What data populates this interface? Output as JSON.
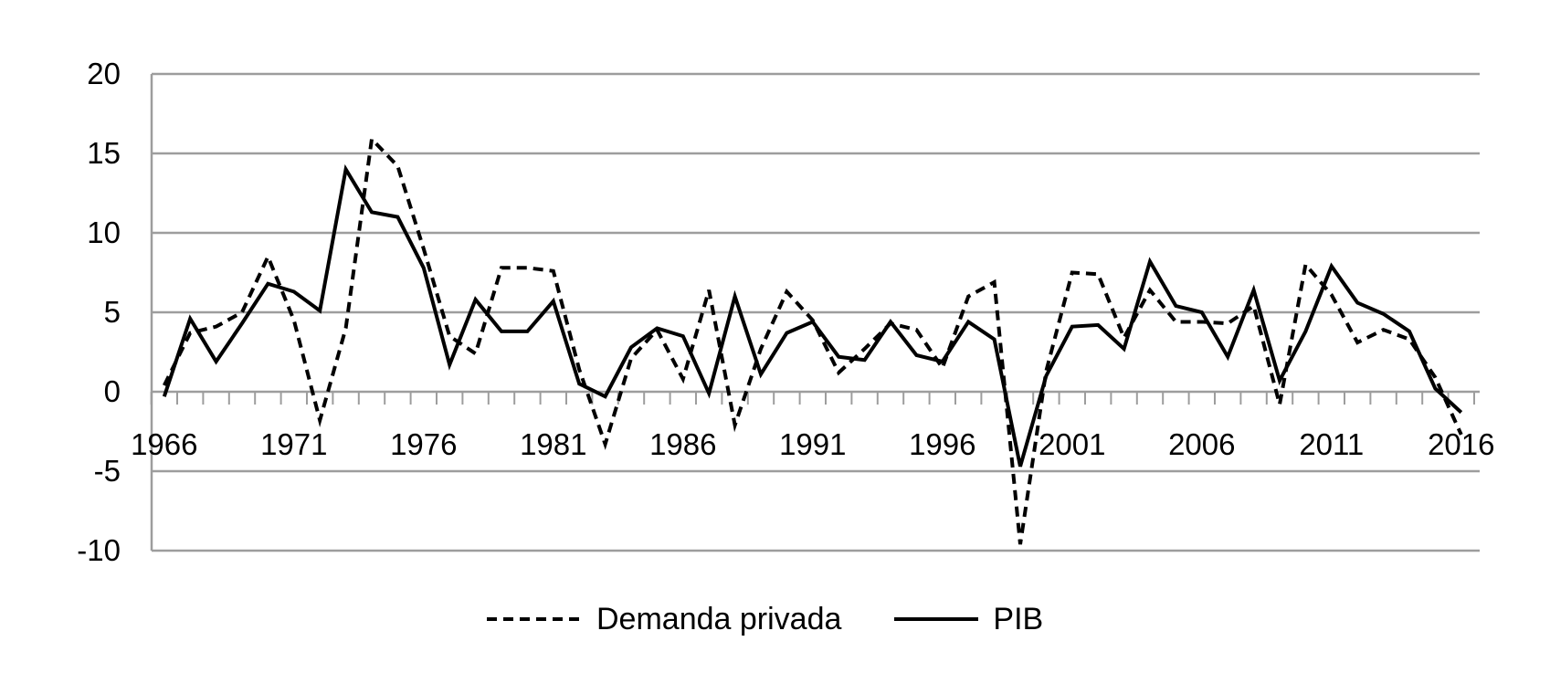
{
  "chart_data": {
    "type": "line",
    "title": "",
    "xlabel": "",
    "ylabel": "",
    "ylim": [
      -10,
      20
    ],
    "ytick_interval": 5,
    "grid": "horizontal",
    "gridline_color": "#9d9d9d",
    "axis_tick_color": "#9d9d9d",
    "line_color": "#000000",
    "legend_position": "bottom",
    "ytick_labels": [
      "20",
      "15",
      "10",
      "5",
      "0",
      "-5",
      "-10"
    ],
    "ytick_values": [
      20,
      15,
      10,
      5,
      0,
      -5,
      -10
    ],
    "xtick_labels": [
      "1966",
      "1971",
      "1976",
      "1981",
      "1986",
      "1991",
      "1996",
      "2001",
      "2006",
      "2011",
      "2016"
    ],
    "x": [
      1966,
      1967,
      1968,
      1969,
      1970,
      1971,
      1972,
      1973,
      1974,
      1975,
      1976,
      1977,
      1978,
      1979,
      1980,
      1981,
      1982,
      1983,
      1984,
      1985,
      1986,
      1987,
      1988,
      1989,
      1990,
      1991,
      1992,
      1993,
      1994,
      1995,
      1996,
      1997,
      1998,
      1999,
      2000,
      2001,
      2002,
      2003,
      2004,
      2005,
      2006,
      2007,
      2008,
      2009,
      2010,
      2011,
      2012,
      2013,
      2014,
      2015,
      2016
    ],
    "series": [
      {
        "name": "Demanda privada",
        "style": "dashed",
        "color": "#000000",
        "values": [
          0.4,
          3.7,
          4.1,
          5.0,
          8.5,
          4.5,
          -1.8,
          4.0,
          15.9,
          14.2,
          9.0,
          3.5,
          2.4,
          7.8,
          7.8,
          7.6,
          1.4,
          -3.3,
          2.1,
          3.9,
          0.8,
          6.4,
          -2.1,
          2.7,
          6.3,
          4.5,
          1.2,
          2.7,
          4.3,
          3.9,
          1.5,
          6.0,
          6.9,
          -9.6,
          1.3,
          7.5,
          7.4,
          3.4,
          6.4,
          4.4,
          4.4,
          4.3,
          5.4,
          -0.8,
          8.0,
          6.1,
          3.1,
          3.9,
          3.3,
          0.9,
          -2.7
        ]
      },
      {
        "name": "PIB",
        "style": "solid",
        "color": "#000000",
        "values": [
          -0.3,
          4.6,
          1.9,
          4.3,
          6.8,
          6.3,
          5.1,
          14.0,
          11.3,
          11.0,
          7.8,
          1.7,
          5.8,
          3.8,
          3.8,
          5.7,
          0.5,
          -0.3,
          2.8,
          4.0,
          3.5,
          -0.1,
          6.0,
          1.1,
          3.7,
          4.4,
          2.2,
          2.0,
          4.4,
          2.3,
          1.9,
          4.4,
          3.3,
          -4.7,
          1.0,
          4.1,
          4.2,
          2.7,
          8.2,
          5.4,
          5.0,
          2.2,
          6.4,
          0.7,
          3.8,
          7.9,
          5.6,
          4.9,
          3.8,
          0.2,
          -1.3
        ]
      }
    ]
  },
  "legend": {
    "items": [
      {
        "label": "Demanda privada",
        "sample": "dashed-line"
      },
      {
        "label": "PIB",
        "sample": "solid-line"
      }
    ]
  }
}
